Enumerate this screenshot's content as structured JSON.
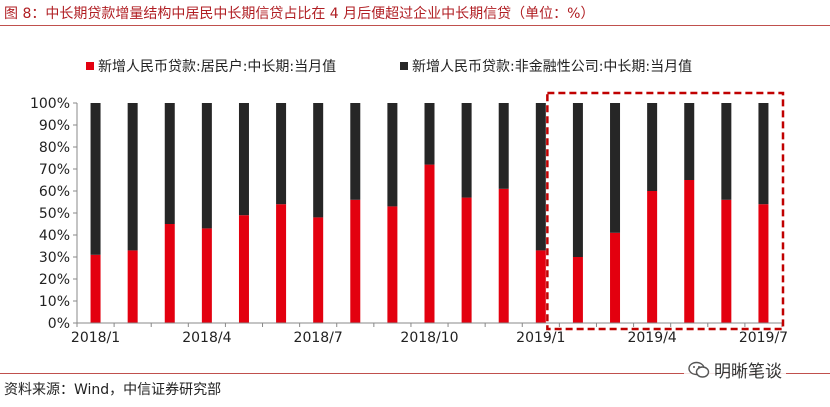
{
  "header": {
    "title": "图 8：中长期贷款增量结构中居民中长期信贷占比在 4 月后便超过企业中长期信贷（单位：%）"
  },
  "footer": {
    "source": "资料来源：Wind，中信证券研究部",
    "watermark": "明晰笔谈",
    "watermark_icon": "wechat-icon"
  },
  "colors": {
    "household": "#e3000f",
    "nonfinancial": "#262626",
    "highlight": "#c00000"
  },
  "chart_data": {
    "type": "bar",
    "stacked": true,
    "percent": true,
    "categories": [
      "2018/1",
      "2018/2",
      "2018/3",
      "2018/4",
      "2018/5",
      "2018/6",
      "2018/7",
      "2018/8",
      "2018/9",
      "2018/10",
      "2018/11",
      "2018/12",
      "2019/1",
      "2019/2",
      "2019/3",
      "2019/4",
      "2019/5",
      "2019/6",
      "2019/7"
    ],
    "x_tick_labels": [
      "2018/1",
      "2018/4",
      "2018/7",
      "2018/10",
      "2019/1",
      "2019/4",
      "2019/7"
    ],
    "series": [
      {
        "name": "新增人民币贷款:居民户:中长期:当月值",
        "color": "#e3000f",
        "values": [
          31,
          33,
          45,
          43,
          49,
          54,
          48,
          56,
          53,
          72,
          57,
          61,
          33,
          30,
          41,
          60,
          65,
          56,
          54
        ]
      },
      {
        "name": "新增人民币贷款:非金融性公司:中长期:当月值",
        "color": "#262626",
        "values": [
          69,
          67,
          55,
          57,
          51,
          46,
          52,
          44,
          47,
          28,
          43,
          39,
          67,
          70,
          59,
          40,
          35,
          44,
          46
        ]
      }
    ],
    "y_tick_labels": [
      "0%",
      "10%",
      "20%",
      "30%",
      "40%",
      "50%",
      "60%",
      "70%",
      "80%",
      "90%",
      "100%"
    ],
    "ylim": [
      0,
      100
    ],
    "legend_position": "top",
    "grid": false,
    "highlight_range": [
      "2019/2",
      "2019/7"
    ]
  }
}
